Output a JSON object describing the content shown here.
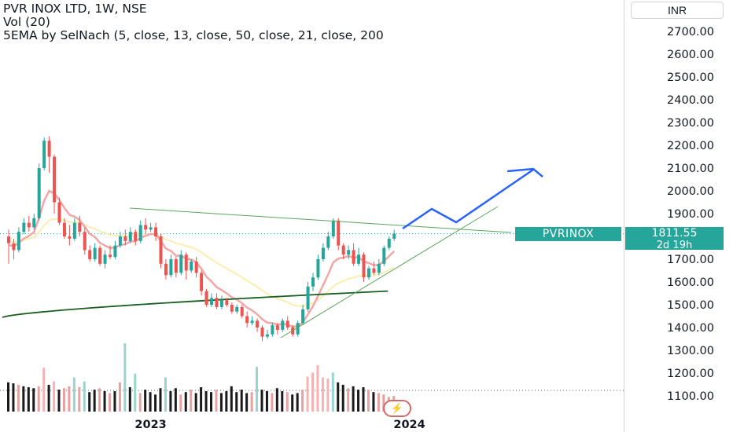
{
  "legend": {
    "line1": "PVR INOX LTD, 1W, NSE",
    "line2": "Vol (20)",
    "line3": "5EMA by SelNach (5, close, 13, close, 50, close, 21, close, 200"
  },
  "currency": "INR",
  "price_tag": {
    "symbol": "PVRINOX",
    "price": "1811.55",
    "countdown": "2d 19h"
  },
  "icons": {
    "flash": "lightning-icon"
  },
  "colors": {
    "up": "#26a69a",
    "down": "#ef5350",
    "ema_pink": "#f4a6a6",
    "ema_yellow": "#fbeeb0",
    "ema_green": "#1b5e20",
    "trend": "#5aa55a",
    "projection": "#2962ff"
  },
  "chart_data": {
    "type": "candlestick",
    "title": "PVR INOX LTD, 1W, NSE",
    "ylim": [
      1050,
      2780
    ],
    "y_ticks": [
      "2700.00",
      "2600.00",
      "2500.00",
      "2400.00",
      "2300.00",
      "2200.00",
      "2100.00",
      "2000.00",
      "1900.00",
      "1800.00",
      "1700.00",
      "1600.00",
      "1500.00",
      "1400.00",
      "1300.00",
      "1200.00",
      "1100.00"
    ],
    "x_tick_labels": [
      "2023",
      "2024"
    ],
    "last_price": 1811.55,
    "candles": [
      [
        1800,
        1770,
        1680,
        1830
      ],
      [
        1770,
        1740,
        1700,
        1790
      ],
      [
        1740,
        1820,
        1730,
        1840
      ],
      [
        1820,
        1860,
        1810,
        1880
      ],
      [
        1860,
        1840,
        1820,
        1890
      ],
      [
        1840,
        1880,
        1830,
        1900
      ],
      [
        1880,
        2100,
        1870,
        2120
      ],
      [
        2100,
        2220,
        2090,
        2235
      ],
      [
        2220,
        2150,
        2080,
        2240
      ],
      [
        2150,
        1950,
        1900,
        2160
      ],
      [
        1950,
        1860,
        1850,
        1970
      ],
      [
        1860,
        1800,
        1790,
        1880
      ],
      [
        1800,
        1790,
        1760,
        1850
      ],
      [
        1790,
        1860,
        1780,
        1880
      ],
      [
        1860,
        1820,
        1800,
        1890
      ],
      [
        1820,
        1740,
        1720,
        1840
      ],
      [
        1740,
        1700,
        1690,
        1760
      ],
      [
        1700,
        1750,
        1690,
        1770
      ],
      [
        1750,
        1680,
        1670,
        1760
      ],
      [
        1680,
        1720,
        1660,
        1740
      ],
      [
        1720,
        1710,
        1700,
        1760
      ],
      [
        1710,
        1760,
        1700,
        1780
      ],
      [
        1760,
        1800,
        1750,
        1820
      ],
      [
        1800,
        1780,
        1760,
        1830
      ],
      [
        1780,
        1820,
        1770,
        1840
      ],
      [
        1820,
        1780,
        1760,
        1830
      ],
      [
        1780,
        1850,
        1770,
        1870
      ],
      [
        1850,
        1830,
        1810,
        1880
      ],
      [
        1830,
        1840,
        1820,
        1860
      ],
      [
        1840,
        1800,
        1780,
        1860
      ],
      [
        1800,
        1680,
        1660,
        1810
      ],
      [
        1680,
        1630,
        1610,
        1700
      ],
      [
        1630,
        1700,
        1620,
        1720
      ],
      [
        1700,
        1640,
        1620,
        1710
      ],
      [
        1640,
        1720,
        1630,
        1740
      ],
      [
        1720,
        1650,
        1610,
        1730
      ],
      [
        1650,
        1690,
        1640,
        1700
      ],
      [
        1690,
        1640,
        1620,
        1710
      ],
      [
        1640,
        1560,
        1540,
        1650
      ],
      [
        1560,
        1500,
        1490,
        1570
      ],
      [
        1500,
        1530,
        1490,
        1550
      ],
      [
        1530,
        1490,
        1480,
        1550
      ],
      [
        1490,
        1520,
        1480,
        1540
      ],
      [
        1520,
        1500,
        1490,
        1530
      ],
      [
        1500,
        1470,
        1460,
        1510
      ],
      [
        1470,
        1490,
        1460,
        1500
      ],
      [
        1490,
        1450,
        1440,
        1500
      ],
      [
        1450,
        1420,
        1400,
        1470
      ],
      [
        1420,
        1430,
        1410,
        1450
      ],
      [
        1430,
        1400,
        1380,
        1440
      ],
      [
        1400,
        1360,
        1340,
        1410
      ],
      [
        1360,
        1370,
        1350,
        1390
      ],
      [
        1370,
        1410,
        1360,
        1420
      ],
      [
        1410,
        1390,
        1370,
        1420
      ],
      [
        1390,
        1430,
        1380,
        1440
      ],
      [
        1430,
        1400,
        1390,
        1450
      ],
      [
        1400,
        1370,
        1360,
        1410
      ],
      [
        1370,
        1420,
        1360,
        1430
      ],
      [
        1420,
        1480,
        1410,
        1500
      ],
      [
        1480,
        1580,
        1470,
        1600
      ],
      [
        1580,
        1620,
        1560,
        1640
      ],
      [
        1620,
        1700,
        1610,
        1720
      ],
      [
        1700,
        1750,
        1690,
        1770
      ],
      [
        1750,
        1800,
        1740,
        1820
      ],
      [
        1800,
        1870,
        1790,
        1880
      ],
      [
        1870,
        1760,
        1740,
        1880
      ],
      [
        1760,
        1720,
        1700,
        1770
      ],
      [
        1720,
        1740,
        1700,
        1760
      ],
      [
        1740,
        1680,
        1670,
        1770
      ],
      [
        1680,
        1720,
        1670,
        1750
      ],
      [
        1720,
        1620,
        1600,
        1730
      ],
      [
        1620,
        1660,
        1610,
        1670
      ],
      [
        1660,
        1640,
        1630,
        1690
      ],
      [
        1640,
        1680,
        1630,
        1700
      ],
      [
        1680,
        1750,
        1670,
        1760
      ],
      [
        1750,
        1790,
        1740,
        1800
      ],
      [
        1790,
        1812,
        1780,
        1830
      ]
    ],
    "volume": [
      [
        60,
        1
      ],
      [
        58,
        1
      ],
      [
        55,
        0
      ],
      [
        52,
        1
      ],
      [
        50,
        1
      ],
      [
        48,
        1
      ],
      [
        52,
        0
      ],
      [
        90,
        0
      ],
      [
        55,
        1
      ],
      [
        62,
        0
      ],
      [
        45,
        1
      ],
      [
        48,
        0
      ],
      [
        52,
        0
      ],
      [
        70,
        1
      ],
      [
        50,
        0
      ],
      [
        62,
        1
      ],
      [
        40,
        1
      ],
      [
        45,
        1
      ],
      [
        48,
        0
      ],
      [
        42,
        1
      ],
      [
        38,
        0
      ],
      [
        42,
        1
      ],
      [
        60,
        0
      ],
      [
        140,
        1
      ],
      [
        50,
        1
      ],
      [
        78,
        1
      ],
      [
        38,
        0
      ],
      [
        45,
        1
      ],
      [
        40,
        1
      ],
      [
        35,
        1
      ],
      [
        48,
        1
      ],
      [
        70,
        1
      ],
      [
        42,
        1
      ],
      [
        48,
        1
      ],
      [
        35,
        0
      ],
      [
        40,
        1
      ],
      [
        45,
        0
      ],
      [
        38,
        1
      ],
      [
        50,
        1
      ],
      [
        42,
        1
      ],
      [
        40,
        1
      ],
      [
        45,
        0
      ],
      [
        38,
        1
      ],
      [
        42,
        1
      ],
      [
        52,
        1
      ],
      [
        40,
        1
      ],
      [
        45,
        1
      ],
      [
        38,
        1
      ],
      [
        40,
        0
      ],
      [
        92,
        1
      ],
      [
        45,
        1
      ],
      [
        42,
        1
      ],
      [
        38,
        0
      ],
      [
        48,
        1
      ],
      [
        42,
        1
      ],
      [
        40,
        0
      ],
      [
        35,
        1
      ],
      [
        38,
        1
      ],
      [
        45,
        0
      ],
      [
        72,
        0
      ],
      [
        80,
        0
      ],
      [
        95,
        0
      ],
      [
        70,
        0
      ],
      [
        68,
        0
      ],
      [
        80,
        1
      ],
      [
        60,
        1
      ],
      [
        55,
        1
      ],
      [
        48,
        0
      ],
      [
        52,
        1
      ],
      [
        45,
        1
      ],
      [
        50,
        1
      ],
      [
        45,
        0
      ],
      [
        40,
        1
      ],
      [
        38,
        0
      ],
      [
        35,
        0
      ],
      [
        30,
        0
      ],
      [
        32,
        0
      ]
    ]
  }
}
